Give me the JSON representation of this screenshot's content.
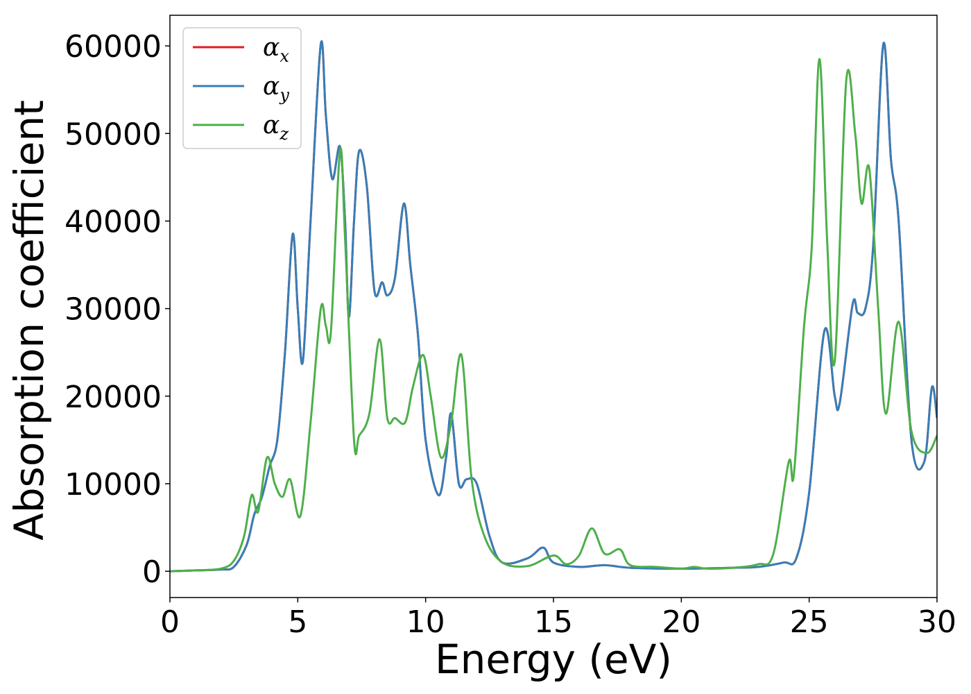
{
  "chart_data": {
    "type": "line",
    "title": "",
    "xlabel": "Energy (eV)",
    "ylabel": "Absorption coefficient",
    "xlim": [
      0,
      30
    ],
    "ylim": [
      -3000,
      63500
    ],
    "xticks": [
      0,
      5,
      10,
      15,
      20,
      25,
      30
    ],
    "yticks": [
      0,
      10000,
      20000,
      30000,
      40000,
      50000,
      60000
    ],
    "grid": false,
    "legend_position": "top-left",
    "series": [
      {
        "name": "α",
        "subscript": "x",
        "color": "#e41a1c",
        "x": [
          0,
          1,
          2,
          2.5,
          3,
          3.3,
          3.6,
          3.9,
          4.2,
          4.5,
          4.8,
          5.0,
          5.2,
          5.5,
          5.9,
          6.1,
          6.35,
          6.65,
          6.85,
          7.0,
          7.2,
          7.4,
          7.7,
          8.0,
          8.3,
          8.5,
          8.8,
          9.15,
          9.4,
          9.7,
          10.0,
          10.5,
          10.8,
          11.0,
          11.3,
          11.6,
          12.0,
          12.5,
          13.0,
          14.0,
          14.6,
          15.0,
          16.0,
          17.0,
          18.0,
          20.0,
          22.0,
          23.0,
          24.0,
          24.5,
          25.0,
          25.6,
          26.0,
          26.2,
          26.7,
          26.9,
          27.2,
          27.5,
          27.9,
          28.2,
          28.5,
          29.0,
          29.5,
          29.8,
          30.0
        ],
        "values": [
          0,
          100,
          200,
          500,
          3000,
          6500,
          8500,
          12000,
          15000,
          25000,
          38500,
          30000,
          24000,
          40000,
          60200,
          52000,
          44800,
          48500,
          40000,
          29000,
          40000,
          48000,
          44000,
          32000,
          33000,
          31500,
          33500,
          42000,
          35000,
          27000,
          15000,
          8700,
          13000,
          18000,
          10000,
          10500,
          10000,
          4000,
          1000,
          1500,
          2700,
          1000,
          500,
          700,
          400,
          300,
          400,
          500,
          1000,
          1500,
          9000,
          27500,
          20000,
          19300,
          30500,
          29500,
          30000,
          37000,
          60200,
          47000,
          40000,
          15000,
          12500,
          21000,
          17500
        ]
      },
      {
        "name": "α",
        "subscript": "y",
        "color": "#377eb8",
        "x": [
          0,
          1,
          2,
          2.5,
          3,
          3.3,
          3.6,
          3.9,
          4.2,
          4.5,
          4.8,
          5.0,
          5.2,
          5.5,
          5.9,
          6.1,
          6.35,
          6.65,
          6.85,
          7.0,
          7.2,
          7.4,
          7.7,
          8.0,
          8.3,
          8.5,
          8.8,
          9.15,
          9.4,
          9.7,
          10.0,
          10.5,
          10.8,
          11.0,
          11.3,
          11.6,
          12.0,
          12.5,
          13.0,
          14.0,
          14.6,
          15.0,
          16.0,
          17.0,
          18.0,
          20.0,
          22.0,
          23.0,
          24.0,
          24.5,
          25.0,
          25.6,
          26.0,
          26.2,
          26.7,
          26.9,
          27.2,
          27.5,
          27.9,
          28.2,
          28.5,
          29.0,
          29.5,
          29.8,
          30.0
        ],
        "values": [
          0,
          100,
          200,
          500,
          3000,
          6500,
          8500,
          12000,
          15000,
          25000,
          38500,
          30000,
          24000,
          40000,
          60200,
          52000,
          44800,
          48500,
          40000,
          29000,
          40000,
          48000,
          44000,
          32000,
          33000,
          31500,
          33500,
          42000,
          35000,
          27000,
          15000,
          8700,
          13000,
          18000,
          10000,
          10500,
          10000,
          4000,
          1000,
          1500,
          2700,
          1000,
          500,
          700,
          400,
          300,
          400,
          500,
          1000,
          1500,
          9000,
          27500,
          20000,
          19300,
          30500,
          29500,
          30000,
          37000,
          60200,
          47000,
          40000,
          15000,
          12500,
          21000,
          17500
        ]
      },
      {
        "name": "α",
        "subscript": "z",
        "color": "#4daf4a",
        "x": [
          0,
          1,
          2,
          2.5,
          2.9,
          3.2,
          3.45,
          3.8,
          4.1,
          4.4,
          4.7,
          5.1,
          5.5,
          5.9,
          6.1,
          6.3,
          6.65,
          6.85,
          7.2,
          7.4,
          7.8,
          8.2,
          8.5,
          8.8,
          9.2,
          9.5,
          9.9,
          10.2,
          10.6,
          11.0,
          11.4,
          11.8,
          12.3,
          13.0,
          14.0,
          15.0,
          15.5,
          16.0,
          16.5,
          17.0,
          17.6,
          18.0,
          19.0,
          20.0,
          20.5,
          21.0,
          22.0,
          23.0,
          23.6,
          24.2,
          24.4,
          24.8,
          25.1,
          25.4,
          25.7,
          26.0,
          26.45,
          26.8,
          27.05,
          27.35,
          27.7,
          28.0,
          28.5,
          29.0,
          29.6,
          30.0
        ],
        "values": [
          0,
          100,
          300,
          1200,
          4000,
          8700,
          6800,
          13000,
          10000,
          8500,
          10500,
          6300,
          17000,
          30000,
          28000,
          27500,
          48000,
          38000,
          15000,
          15500,
          18000,
          26500,
          17500,
          17500,
          17000,
          21000,
          24700,
          20000,
          13000,
          17000,
          24700,
          10500,
          4000,
          1000,
          600,
          1800,
          800,
          1800,
          4900,
          2000,
          2500,
          700,
          500,
          300,
          500,
          300,
          400,
          800,
          2000,
          12500,
          11000,
          28000,
          37000,
          58500,
          38000,
          24000,
          56000,
          50000,
          42000,
          46000,
          30000,
          18000,
          28500,
          16000,
          13500,
          15500
        ]
      }
    ]
  }
}
